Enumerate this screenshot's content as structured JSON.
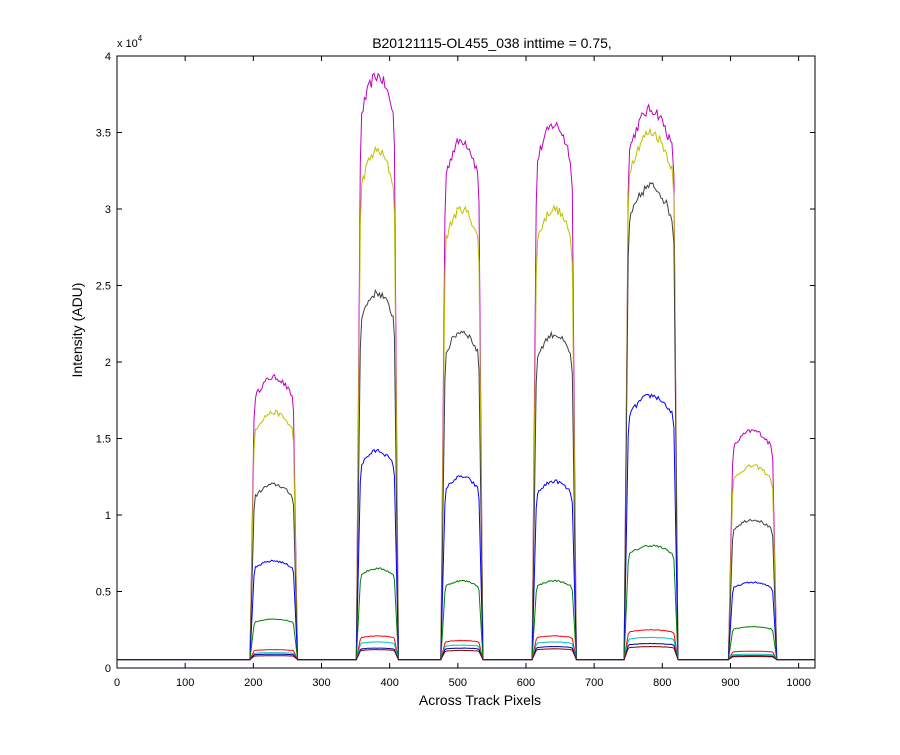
{
  "chart_data": {
    "type": "line",
    "title": "B20121115-OL455_038 inttime = 0.75,",
    "xlabel": "Across Track Pixels",
    "ylabel": "Intensity (ADU)",
    "y_multiplier": {
      "base": "x 10",
      "exponent": "4"
    },
    "xlim": [
      0,
      1024
    ],
    "ylim": [
      0,
      40000
    ],
    "x_ticks": [
      0,
      100,
      200,
      300,
      400,
      500,
      600,
      700,
      800,
      900,
      1000
    ],
    "x_tick_labels": [
      "0",
      "100",
      "200",
      "300",
      "400",
      "500",
      "600",
      "700",
      "800",
      "900",
      "1000"
    ],
    "y_ticks": [
      0,
      5000,
      10000,
      15000,
      20000,
      25000,
      30000,
      35000,
      40000
    ],
    "y_tick_labels": [
      "0",
      "0.5",
      "1",
      "1.5",
      "2",
      "2.5",
      "3",
      "3.5",
      "4"
    ],
    "grid": false,
    "baseline": 550,
    "segments": [
      {
        "start": 196,
        "end": 264
      },
      {
        "start": 352,
        "end": 412
      },
      {
        "start": 476,
        "end": 536
      },
      {
        "start": 610,
        "end": 673
      },
      {
        "start": 745,
        "end": 822
      },
      {
        "start": 898,
        "end": 967
      }
    ],
    "series": [
      {
        "color": "#bf00bf",
        "plateaus": [
          19000,
          38700,
          34500,
          35500,
          36500,
          15500
        ]
      },
      {
        "color": "#bfbf00",
        "plateaus": [
          16700,
          33800,
          30000,
          30000,
          35000,
          13200
        ]
      },
      {
        "color": "#404040",
        "plateaus": [
          12000,
          24500,
          22000,
          21800,
          31500,
          9700
        ]
      },
      {
        "color": "#0000ff",
        "plateaus": [
          7000,
          14200,
          12500,
          12200,
          17800,
          5600
        ]
      },
      {
        "color": "#008000",
        "plateaus": [
          3200,
          6500,
          5700,
          5700,
          8000,
          2700
        ]
      },
      {
        "color": "#ff0000",
        "plateaus": [
          1200,
          2100,
          1800,
          2100,
          2500,
          1100
        ]
      },
      {
        "color": "#00bfbf",
        "plateaus": [
          1000,
          1700,
          1500,
          1700,
          2000,
          900
        ]
      },
      {
        "color": "#0000a0",
        "plateaus": [
          900,
          1300,
          1300,
          1400,
          1600,
          800
        ]
      },
      {
        "color": "#800000",
        "plateaus": [
          800,
          1200,
          1150,
          1250,
          1400,
          750
        ]
      }
    ]
  }
}
